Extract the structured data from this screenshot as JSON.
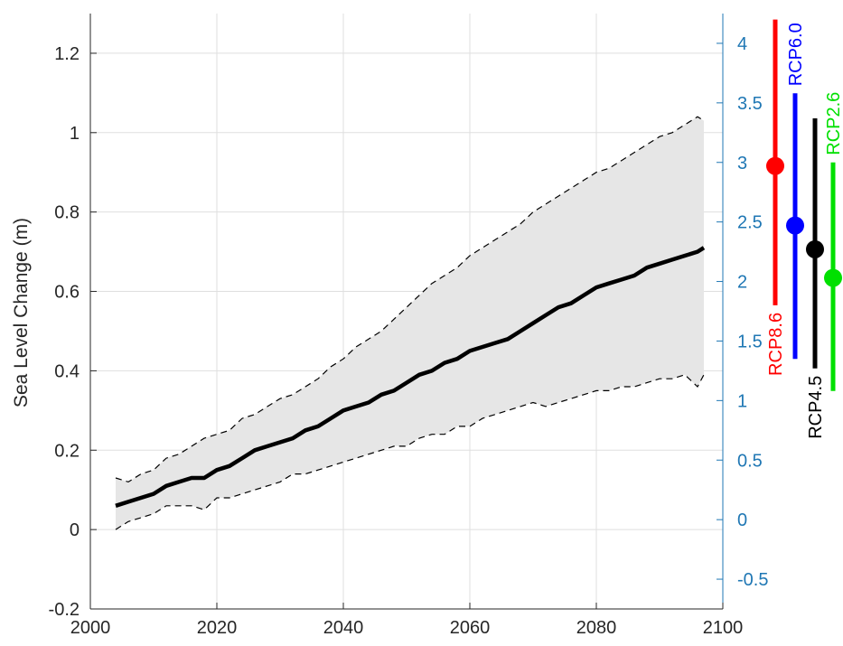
{
  "chart_data": {
    "type": "line",
    "title": "",
    "xlabel": "",
    "ylabel": "Sea Level Change (m)",
    "xlim": [
      2000,
      2100
    ],
    "ylim": [
      -0.2,
      1.3
    ],
    "xticks": [
      2000,
      2020,
      2040,
      2060,
      2080,
      2100
    ],
    "yticks": [
      -0.2,
      0,
      0.2,
      0.4,
      0.6,
      0.8,
      1,
      1.2
    ],
    "y2lim": [
      -0.75,
      4.25
    ],
    "y2ticks": [
      -0.5,
      0,
      0.5,
      1,
      1.5,
      2,
      2.5,
      3,
      3.5,
      4
    ],
    "grid": true,
    "colors": {
      "axis_right": "#1f77b4",
      "axis_left": "#262626",
      "grid": "#dfdfdf",
      "band": "#e6e6e6",
      "median": "#000000"
    },
    "series": [
      {
        "style": "thick-solid",
        "x": [
          2004,
          2006,
          2008,
          2010,
          2012,
          2014,
          2016,
          2018,
          2020,
          2022,
          2024,
          2026,
          2028,
          2030,
          2032,
          2034,
          2036,
          2038,
          2040,
          2042,
          2044,
          2046,
          2048,
          2050,
          2052,
          2054,
          2056,
          2058,
          2060,
          2062,
          2064,
          2066,
          2068,
          2070,
          2072,
          2074,
          2076,
          2078,
          2080,
          2082,
          2084,
          2086,
          2088,
          2090,
          2092,
          2094,
          2096,
          2097
        ],
        "values": [
          0.06,
          0.07,
          0.08,
          0.09,
          0.11,
          0.12,
          0.13,
          0.13,
          0.15,
          0.16,
          0.18,
          0.2,
          0.21,
          0.22,
          0.23,
          0.25,
          0.26,
          0.28,
          0.3,
          0.31,
          0.32,
          0.34,
          0.35,
          0.37,
          0.39,
          0.4,
          0.42,
          0.43,
          0.45,
          0.46,
          0.47,
          0.48,
          0.5,
          0.52,
          0.54,
          0.56,
          0.57,
          0.59,
          0.61,
          0.62,
          0.63,
          0.64,
          0.66,
          0.67,
          0.68,
          0.69,
          0.7,
          0.71
        ]
      },
      {
        "style": "dashed-upper",
        "x": [
          2004,
          2006,
          2008,
          2010,
          2012,
          2014,
          2016,
          2018,
          2020,
          2022,
          2024,
          2026,
          2028,
          2030,
          2032,
          2034,
          2036,
          2038,
          2040,
          2042,
          2044,
          2046,
          2048,
          2050,
          2052,
          2054,
          2056,
          2058,
          2060,
          2062,
          2064,
          2066,
          2068,
          2070,
          2072,
          2074,
          2076,
          2078,
          2080,
          2082,
          2084,
          2086,
          2088,
          2090,
          2092,
          2094,
          2096,
          2097
        ],
        "values": [
          0.13,
          0.12,
          0.14,
          0.15,
          0.18,
          0.19,
          0.21,
          0.23,
          0.24,
          0.25,
          0.28,
          0.29,
          0.31,
          0.33,
          0.34,
          0.36,
          0.38,
          0.41,
          0.43,
          0.46,
          0.48,
          0.5,
          0.53,
          0.56,
          0.59,
          0.62,
          0.64,
          0.66,
          0.69,
          0.71,
          0.73,
          0.75,
          0.77,
          0.8,
          0.82,
          0.84,
          0.86,
          0.88,
          0.9,
          0.91,
          0.93,
          0.95,
          0.97,
          0.99,
          1.0,
          1.02,
          1.04,
          1.03
        ]
      },
      {
        "style": "dashed-lower",
        "x": [
          2004,
          2006,
          2008,
          2010,
          2012,
          2014,
          2016,
          2018,
          2020,
          2022,
          2024,
          2026,
          2028,
          2030,
          2032,
          2034,
          2036,
          2038,
          2040,
          2042,
          2044,
          2046,
          2048,
          2050,
          2052,
          2054,
          2056,
          2058,
          2060,
          2062,
          2064,
          2066,
          2068,
          2070,
          2072,
          2074,
          2076,
          2078,
          2080,
          2082,
          2084,
          2086,
          2088,
          2090,
          2092,
          2094,
          2096,
          2097
        ],
        "values": [
          0.0,
          0.02,
          0.03,
          0.04,
          0.06,
          0.06,
          0.06,
          0.05,
          0.08,
          0.08,
          0.09,
          0.1,
          0.11,
          0.12,
          0.14,
          0.14,
          0.15,
          0.16,
          0.17,
          0.18,
          0.19,
          0.2,
          0.21,
          0.21,
          0.23,
          0.24,
          0.24,
          0.26,
          0.26,
          0.28,
          0.29,
          0.3,
          0.31,
          0.32,
          0.31,
          0.32,
          0.33,
          0.34,
          0.35,
          0.35,
          0.36,
          0.36,
          0.37,
          0.38,
          0.38,
          0.39,
          0.36,
          0.39
        ]
      }
    ],
    "scenarios": [
      {
        "label": "RCP8.6",
        "color": "#ff0000",
        "median": 2.97,
        "low": 1.8,
        "high": 4.2
      },
      {
        "label": "RCP6.0",
        "color": "#0000ff",
        "median": 2.47,
        "low": 1.35,
        "high": 3.58
      },
      {
        "label": "RCP4.5",
        "color": "#000000",
        "median": 2.27,
        "low": 1.27,
        "high": 3.37
      },
      {
        "label": "RCP2.6",
        "color": "#00e000",
        "median": 2.03,
        "low": 1.08,
        "high": 3.0
      }
    ]
  }
}
